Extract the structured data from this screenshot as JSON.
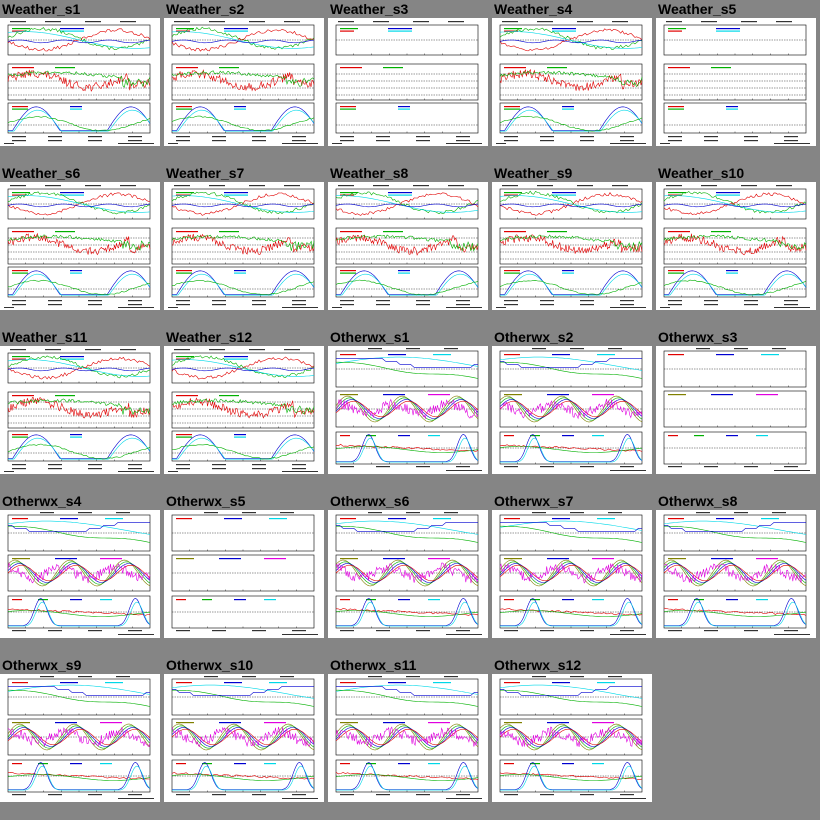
{
  "tiles": [
    {
      "title": "Weather_s1",
      "kind": "weather",
      "data": true
    },
    {
      "title": "Weather_s2",
      "kind": "weather",
      "data": true
    },
    {
      "title": "Weather_s3",
      "kind": "weather",
      "data": false
    },
    {
      "title": "Weather_s4",
      "kind": "weather",
      "data": true
    },
    {
      "title": "Weather_s5",
      "kind": "weather",
      "data": false
    },
    {
      "title": "Weather_s6",
      "kind": "weather",
      "data": true
    },
    {
      "title": "Weather_s7",
      "kind": "weather",
      "data": true
    },
    {
      "title": "Weather_s8",
      "kind": "weather",
      "data": true
    },
    {
      "title": "Weather_s9",
      "kind": "weather",
      "data": true
    },
    {
      "title": "Weather_s10",
      "kind": "weather",
      "data": true
    },
    {
      "title": "Weather_s11",
      "kind": "weather",
      "data": true
    },
    {
      "title": "Weather_s12",
      "kind": "weather",
      "data": true
    },
    {
      "title": "Otherwx_s1",
      "kind": "otherwx",
      "data": true
    },
    {
      "title": "Otherwx_s2",
      "kind": "otherwx",
      "data": true
    },
    {
      "title": "Otherwx_s3",
      "kind": "otherwx",
      "data": false
    },
    {
      "title": "Otherwx_s4",
      "kind": "otherwx",
      "data": true
    },
    {
      "title": "Otherwx_s5",
      "kind": "otherwx",
      "data": false
    },
    {
      "title": "Otherwx_s6",
      "kind": "otherwx",
      "data": true
    },
    {
      "title": "Otherwx_s7",
      "kind": "otherwx",
      "data": true
    },
    {
      "title": "Otherwx_s8",
      "kind": "otherwx",
      "data": true
    },
    {
      "title": "Otherwx_s9",
      "kind": "otherwx",
      "data": true
    },
    {
      "title": "Otherwx_s10",
      "kind": "otherwx",
      "data": true
    },
    {
      "title": "Otherwx_s11",
      "kind": "otherwx",
      "data": true
    },
    {
      "title": "Otherwx_s12",
      "kind": "otherwx",
      "data": true
    }
  ],
  "colors": {
    "page_bg": "#858585",
    "red": "#e00000",
    "green": "#00b000",
    "blue": "#0000d0",
    "cyan": "#00d8e8",
    "magenta": "#e000e0",
    "olive": "#808000",
    "black": "#000000"
  }
}
